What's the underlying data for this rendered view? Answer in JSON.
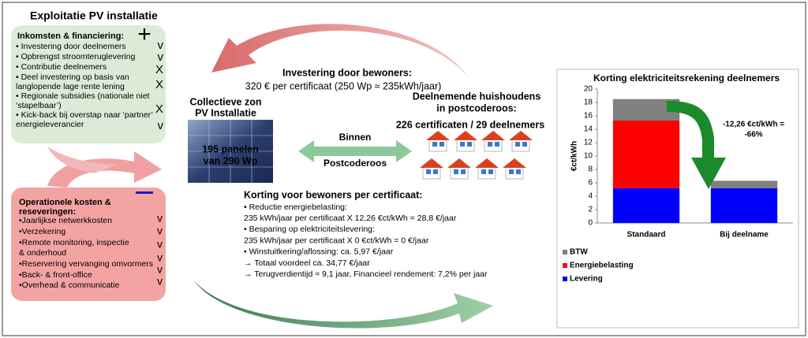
{
  "title": "Exploitatie PV installatie",
  "income": {
    "heading": [
      "Inkomsten & financiering:"
    ],
    "items": [
      [
        "• Investering door deelnemers"
      ],
      [
        "• Opbrengst stroomteruglevering"
      ],
      [
        "• Contributie deelnemers"
      ],
      [
        "• Deel investering op basis van",
        "langlopende lage rente lening"
      ],
      [
        "• Regionale subsidies (nationale niet",
        "‘stapelbaar’)"
      ],
      [
        "• Kick-back bij overstap naar ‘partner’",
        "energieleverancier"
      ]
    ],
    "marks": [
      "v",
      "v",
      "X",
      "X",
      "X",
      "v"
    ]
  },
  "costs": {
    "heading": [
      "Operationele kosten &",
      "reseveringen:"
    ],
    "items": [
      [
        "•Jaarlijkse netwerkkosten"
      ],
      [
        "•Verzekering"
      ],
      [
        "•Remote monitoring, inspectie",
        "  & onderhoud"
      ],
      [
        "•Reservering vervanging omvormers"
      ],
      [
        "•Back- & front-office"
      ],
      [
        "•Overhead & communicatie"
      ]
    ],
    "marks": [
      "v",
      "v",
      "v",
      "v",
      "v",
      "v"
    ]
  },
  "investment": {
    "title": "Investering door bewoners:",
    "text": "320 € per certificaat (250 Wp ≈ 235kWh/jaar)"
  },
  "installation": {
    "title": [
      "Collectieve zon",
      "PV Installatie"
    ],
    "panels": [
      "195 panelen",
      "van 290 Wp"
    ]
  },
  "exchange": {
    "top": "Binnen",
    "bottom": "Postcoderoos"
  },
  "households": {
    "title": [
      "Deelnemende huishoudens",
      "in postcoderoos:"
    ],
    "count": "226 certificaten / 29 deelnemers"
  },
  "discount": {
    "title": "Korting voor bewoners per certificaat:",
    "lines": [
      "• Reductie energiebelasting:",
      "235 kWh/jaar per certificaat X 12,26 €ct/kWh = 28,8 €/jaar",
      "• Besparing op elektriciteitslevering:",
      "235 kWh/jaar per certificaat X 0 €ct/kWh = 0 €/jaar",
      "• Winstuitkering/aflossing: ca. 5,97 €/jaar",
      "→ Totaal voordeel ca. 34,77 €/jaar",
      "→ Terugverdientijd ≈ 9,1 jaar, Financieel rendement: 7,2% per jaar"
    ]
  },
  "chart_data": {
    "type": "stacked-bar",
    "title": "Korting elektriciteitsrekening deelnemers",
    "ylabel": "€ct/kWh",
    "categories": [
      "Standaard",
      "Bij deelname"
    ],
    "series": [
      {
        "name": "Levering",
        "color": "#0000ff",
        "values": [
          5.2,
          5.2
        ]
      },
      {
        "name": "Energiebelasting",
        "color": "#ff0000",
        "values": [
          10.1,
          0
        ]
      },
      {
        "name": "BTW",
        "color": "#808080",
        "values": [
          3.2,
          1.1
        ]
      }
    ],
    "ylim": [
      0,
      20
    ],
    "yticks": [
      0,
      2,
      4,
      6,
      8,
      10,
      12,
      14,
      16,
      18,
      20
    ],
    "annotation": [
      "-12,26 €ct/kWh =",
      "-66%"
    ],
    "legend": "bottom-left"
  }
}
